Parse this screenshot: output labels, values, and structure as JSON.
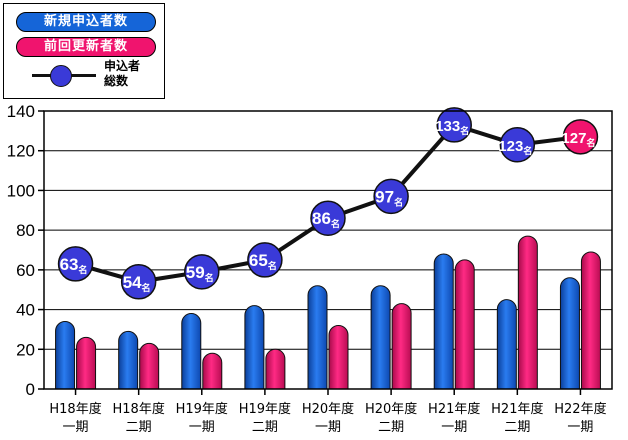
{
  "legend": {
    "new_label": "新規申込者数",
    "renew_label": "前回更新者数",
    "total_label": "申込者\n総数"
  },
  "colors": {
    "new": "#1565d8",
    "renew": "#f0146e",
    "total": "#3a3ad8",
    "line": "#111111"
  },
  "chart_data": {
    "type": "bar",
    "categories": [
      [
        "H18年度",
        "一期"
      ],
      [
        "H18年度",
        "二期"
      ],
      [
        "H19年度",
        "一期"
      ],
      [
        "H19年度",
        "二期"
      ],
      [
        "H20年度",
        "一期"
      ],
      [
        "H20年度",
        "二期"
      ],
      [
        "H21年度",
        "一期"
      ],
      [
        "H21年度",
        "二期"
      ],
      [
        "H22年度",
        "一期"
      ]
    ],
    "series": [
      {
        "name": "新規申込者数",
        "type": "bar",
        "values": [
          34,
          29,
          38,
          42,
          52,
          52,
          68,
          45,
          56
        ]
      },
      {
        "name": "前回更新者数",
        "type": "bar",
        "values": [
          26,
          23,
          18,
          20,
          32,
          43,
          65,
          77,
          69
        ]
      },
      {
        "name": "申込者総数",
        "type": "line",
        "values": [
          63,
          54,
          59,
          65,
          86,
          97,
          133,
          123,
          127
        ],
        "point_labels": [
          "63名",
          "54名",
          "59名",
          "65名",
          "86名",
          "97名",
          "133名",
          "123名",
          "127名"
        ],
        "highlight_last": true
      }
    ],
    "title": "",
    "xlabel": "",
    "ylabel": "",
    "ylim": [
      0,
      140
    ],
    "yticks": [
      0,
      20,
      40,
      60,
      80,
      100,
      120,
      140
    ],
    "grid": true,
    "legend_position": "top-left"
  }
}
